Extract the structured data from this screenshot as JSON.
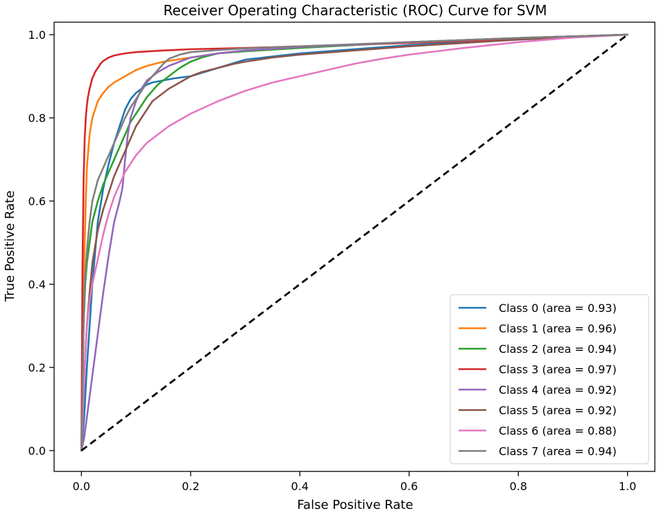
{
  "chart_data": {
    "type": "line",
    "title": "Receiver Operating Characteristic (ROC) Curve for SVM",
    "xlabel": "False Positive Rate",
    "ylabel": "True Positive Rate",
    "xlim": [
      -0.05,
      1.05
    ],
    "ylim": [
      -0.05,
      1.03
    ],
    "xticks": [
      0.0,
      0.2,
      0.4,
      0.6,
      0.8,
      1.0
    ],
    "xtick_labels": [
      "0.0",
      "0.2",
      "0.4",
      "0.6",
      "0.8",
      "1.0"
    ],
    "yticks": [
      0.0,
      0.2,
      0.4,
      0.6,
      0.8,
      1.0
    ],
    "ytick_labels": [
      "0.0",
      "0.2",
      "0.4",
      "0.6",
      "0.8",
      "1.0"
    ],
    "grid": false,
    "legend_position": "lower-right",
    "series": [
      {
        "name": "Class 0 (area = 0.93)",
        "color": "#1f77b4",
        "x": [
          0,
          0.002,
          0.005,
          0.01,
          0.02,
          0.03,
          0.04,
          0.05,
          0.06,
          0.07,
          0.08,
          0.09,
          0.1,
          0.11,
          0.12,
          0.13,
          0.15,
          0.17,
          0.2,
          0.25,
          0.3,
          0.4,
          0.5,
          0.6,
          0.7,
          0.8,
          0.9,
          1.0
        ],
        "y": [
          0,
          0.03,
          0.08,
          0.2,
          0.4,
          0.55,
          0.63,
          0.69,
          0.74,
          0.78,
          0.82,
          0.845,
          0.86,
          0.87,
          0.88,
          0.885,
          0.89,
          0.895,
          0.9,
          0.92,
          0.94,
          0.955,
          0.965,
          0.975,
          0.982,
          0.988,
          0.994,
          1.0
        ]
      },
      {
        "name": "Class 1 (area = 0.96)",
        "color": "#ff7f0e",
        "x": [
          0,
          0.002,
          0.005,
          0.008,
          0.01,
          0.015,
          0.02,
          0.03,
          0.04,
          0.05,
          0.06,
          0.08,
          0.1,
          0.12,
          0.15,
          0.2,
          0.25,
          0.3,
          0.4,
          0.5,
          0.6,
          0.7,
          0.8,
          0.9,
          1.0
        ],
        "y": [
          0,
          0.2,
          0.45,
          0.6,
          0.68,
          0.76,
          0.8,
          0.84,
          0.86,
          0.875,
          0.885,
          0.9,
          0.915,
          0.925,
          0.935,
          0.945,
          0.955,
          0.962,
          0.97,
          0.976,
          0.982,
          0.987,
          0.992,
          0.996,
          1.0
        ]
      },
      {
        "name": "Class 2 (area = 0.94)",
        "color": "#2ca02c",
        "x": [
          0,
          0.002,
          0.004,
          0.007,
          0.01,
          0.015,
          0.02,
          0.03,
          0.04,
          0.05,
          0.06,
          0.07,
          0.08,
          0.09,
          0.1,
          0.12,
          0.14,
          0.16,
          0.18,
          0.2,
          0.22,
          0.25,
          0.3,
          0.4,
          0.5,
          0.6,
          0.7,
          0.8,
          0.9,
          1.0
        ],
        "y": [
          0,
          0.15,
          0.3,
          0.4,
          0.45,
          0.5,
          0.55,
          0.6,
          0.64,
          0.67,
          0.7,
          0.73,
          0.76,
          0.79,
          0.81,
          0.85,
          0.88,
          0.9,
          0.92,
          0.935,
          0.945,
          0.955,
          0.96,
          0.968,
          0.975,
          0.982,
          0.987,
          0.992,
          0.996,
          1.0
        ]
      },
      {
        "name": "Class 3 (area = 0.97)",
        "color": "#d62728",
        "x": [
          0,
          0.002,
          0.004,
          0.006,
          0.008,
          0.01,
          0.012,
          0.015,
          0.018,
          0.02,
          0.025,
          0.03,
          0.035,
          0.04,
          0.05,
          0.06,
          0.08,
          0.1,
          0.15,
          0.2,
          0.3,
          0.4,
          0.5,
          0.6,
          0.7,
          0.8,
          0.9,
          1.0
        ],
        "y": [
          0,
          0.45,
          0.65,
          0.75,
          0.8,
          0.83,
          0.85,
          0.87,
          0.885,
          0.895,
          0.91,
          0.92,
          0.93,
          0.937,
          0.945,
          0.95,
          0.955,
          0.958,
          0.962,
          0.965,
          0.968,
          0.972,
          0.976,
          0.98,
          0.985,
          0.99,
          0.995,
          1.0
        ]
      },
      {
        "name": "Class 4 (area = 0.92)",
        "color": "#9467bd",
        "x": [
          0,
          0.005,
          0.01,
          0.015,
          0.02,
          0.025,
          0.03,
          0.04,
          0.05,
          0.06,
          0.07,
          0.075,
          0.08,
          0.085,
          0.09,
          0.1,
          0.11,
          0.12,
          0.14,
          0.16,
          0.18,
          0.2,
          0.25,
          0.3,
          0.4,
          0.5,
          0.6,
          0.7,
          0.8,
          0.9,
          1.0
        ],
        "y": [
          0,
          0.03,
          0.08,
          0.13,
          0.18,
          0.23,
          0.28,
          0.38,
          0.47,
          0.55,
          0.6,
          0.63,
          0.7,
          0.76,
          0.8,
          0.84,
          0.87,
          0.89,
          0.91,
          0.925,
          0.935,
          0.945,
          0.955,
          0.962,
          0.97,
          0.976,
          0.982,
          0.987,
          0.992,
          0.996,
          1.0
        ]
      },
      {
        "name": "Class 5 (area = 0.92)",
        "color": "#8c564b",
        "x": [
          0,
          0.003,
          0.006,
          0.01,
          0.015,
          0.02,
          0.03,
          0.04,
          0.05,
          0.06,
          0.07,
          0.08,
          0.09,
          0.1,
          0.11,
          0.12,
          0.13,
          0.14,
          0.16,
          0.18,
          0.2,
          0.22,
          0.25,
          0.28,
          0.3,
          0.35,
          0.4,
          0.5,
          0.6,
          0.7,
          0.8,
          0.9,
          1.0
        ],
        "y": [
          0,
          0.1,
          0.2,
          0.3,
          0.38,
          0.45,
          0.53,
          0.58,
          0.62,
          0.66,
          0.69,
          0.72,
          0.75,
          0.78,
          0.8,
          0.82,
          0.84,
          0.85,
          0.87,
          0.885,
          0.9,
          0.91,
          0.92,
          0.93,
          0.935,
          0.945,
          0.952,
          0.962,
          0.972,
          0.98,
          0.988,
          0.995,
          1.0
        ]
      },
      {
        "name": "Class 6 (area = 0.88)",
        "color": "#e377c2",
        "x": [
          0,
          0.003,
          0.006,
          0.01,
          0.015,
          0.02,
          0.03,
          0.04,
          0.05,
          0.06,
          0.07,
          0.08,
          0.09,
          0.1,
          0.12,
          0.14,
          0.16,
          0.18,
          0.2,
          0.25,
          0.3,
          0.35,
          0.4,
          0.45,
          0.5,
          0.55,
          0.6,
          0.65,
          0.7,
          0.8,
          0.9,
          1.0
        ],
        "y": [
          0,
          0.1,
          0.2,
          0.3,
          0.36,
          0.4,
          0.46,
          0.52,
          0.57,
          0.61,
          0.64,
          0.67,
          0.69,
          0.71,
          0.74,
          0.76,
          0.78,
          0.795,
          0.81,
          0.84,
          0.865,
          0.885,
          0.9,
          0.915,
          0.93,
          0.942,
          0.952,
          0.96,
          0.968,
          0.982,
          0.993,
          1.0
        ]
      },
      {
        "name": "Class 7 (area = 0.94)",
        "color": "#7f7f7f",
        "x": [
          0,
          0.002,
          0.004,
          0.006,
          0.01,
          0.015,
          0.02,
          0.03,
          0.04,
          0.05,
          0.06,
          0.07,
          0.08,
          0.09,
          0.1,
          0.11,
          0.12,
          0.13,
          0.14,
          0.15,
          0.16,
          0.18,
          0.2,
          0.25,
          0.3,
          0.4,
          0.5,
          0.6,
          0.7,
          0.8,
          0.9,
          1.0
        ],
        "y": [
          0,
          0.15,
          0.3,
          0.4,
          0.48,
          0.55,
          0.6,
          0.65,
          0.68,
          0.71,
          0.74,
          0.77,
          0.8,
          0.825,
          0.845,
          0.865,
          0.885,
          0.9,
          0.915,
          0.93,
          0.942,
          0.952,
          0.958,
          0.963,
          0.967,
          0.972,
          0.977,
          0.982,
          0.987,
          0.992,
          0.996,
          1.0
        ]
      }
    ],
    "diagonal": {
      "color": "#000000",
      "x": [
        0,
        1
      ],
      "y": [
        0,
        1
      ]
    }
  }
}
